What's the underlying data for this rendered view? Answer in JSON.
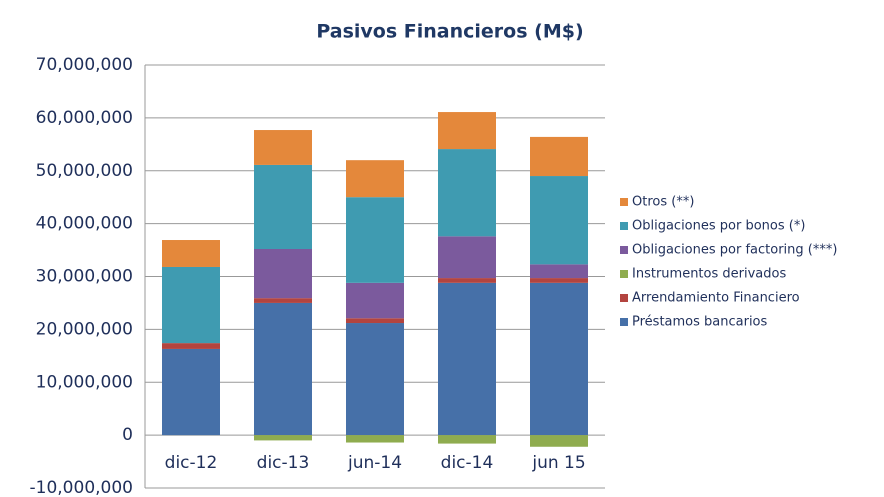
{
  "chart_data": {
    "type": "stacked-bar",
    "title": "Pasivos Financieros (M$)",
    "categories": [
      "dic-12",
      "dic-13",
      "jun-14",
      "dic-14",
      "jun 15"
    ],
    "series": [
      {
        "name": "Préstamos bancarios",
        "color": "#4670a8",
        "values": [
          16300000,
          25000000,
          21200000,
          28800000,
          28800000
        ]
      },
      {
        "name": "Arrendamiento Financiero",
        "color": "#b3443f",
        "values": [
          1100000,
          900000,
          900000,
          900000,
          900000
        ]
      },
      {
        "name": "Instrumentos derivados",
        "color": "#8fac4f",
        "values": [
          0,
          -1000000,
          -1400000,
          -1600000,
          -2200000
        ]
      },
      {
        "name": "Obligaciones por factoring (***)",
        "color": "#7b5a9d",
        "values": [
          0,
          9300000,
          6700000,
          7900000,
          2600000
        ]
      },
      {
        "name": "Obligaciones por bonos (*)",
        "color": "#3f9bb1",
        "values": [
          14400000,
          15900000,
          16200000,
          16500000,
          16700000
        ]
      },
      {
        "name": "Otros (**)",
        "color": "#e4883b",
        "values": [
          5100000,
          6600000,
          7000000,
          7000000,
          7400000
        ]
      }
    ],
    "ylim": [
      -10000000,
      70000000
    ],
    "yticks": [
      {
        "value": -10000000,
        "label": "-10,000,000"
      },
      0,
      {
        "value": 10000000,
        "label": "10,000,000"
      },
      {
        "value": 20000000,
        "label": "20,000,000"
      },
      {
        "value": 30000000,
        "label": "30,000,000"
      },
      {
        "value": 40000000,
        "label": "40,000,000"
      },
      {
        "value": 50000000,
        "label": "50,000,000"
      },
      {
        "value": 60000000,
        "label": "60,000,000"
      },
      {
        "value": 70000000,
        "label": "70,000,000"
      }
    ],
    "grid": true,
    "legend": "right"
  }
}
